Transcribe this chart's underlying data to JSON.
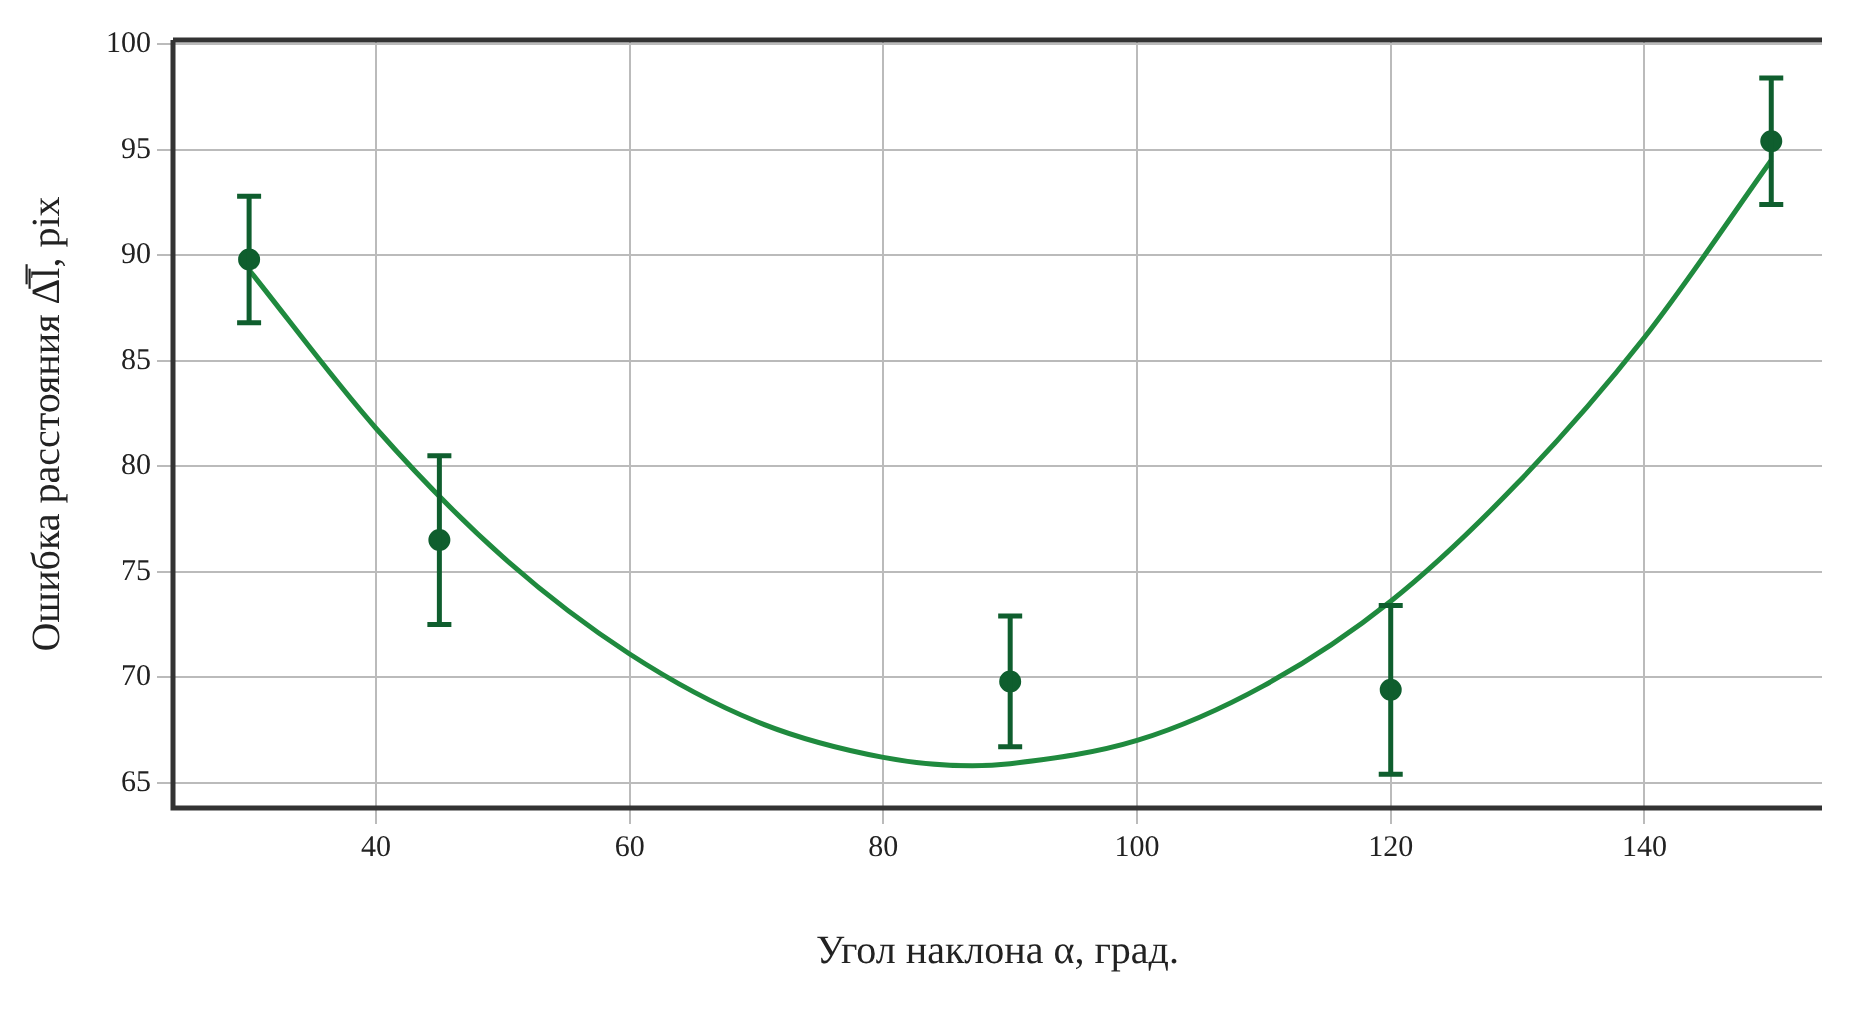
{
  "chart_data": {
    "type": "scatter",
    "xlabel": "Угол наклона α, град.",
    "ylabel": "Ошибка расстояния Δ̅l̅, pix",
    "xlim": [
      24,
      154
    ],
    "ylim": [
      63.8,
      100.2
    ],
    "xticks": [
      40,
      60,
      80,
      100,
      120,
      140
    ],
    "yticks": [
      65,
      70,
      75,
      80,
      85,
      90,
      95,
      100
    ],
    "grid": true,
    "marker": "circle",
    "series": [
      {
        "color": "#0f5e2e",
        "x": [
          30,
          45,
          90,
          120,
          150
        ],
        "values": [
          89.8,
          76.5,
          69.8,
          69.4,
          95.4
        ],
        "errors": [
          3,
          4,
          3.1,
          4,
          3
        ]
      },
      {
        "type": "line",
        "color": "#1f8a3e",
        "marker": "none",
        "x": [
          30,
          40,
          50,
          60,
          70,
          80,
          87,
          90,
          100,
          110,
          120,
          130,
          140,
          150
        ],
        "values": [
          89.3,
          81.8,
          75.7,
          71.1,
          67.9,
          66.2,
          65.8,
          65.9,
          67.0,
          69.6,
          73.6,
          79.2,
          86.1,
          94.5
        ]
      }
    ]
  }
}
